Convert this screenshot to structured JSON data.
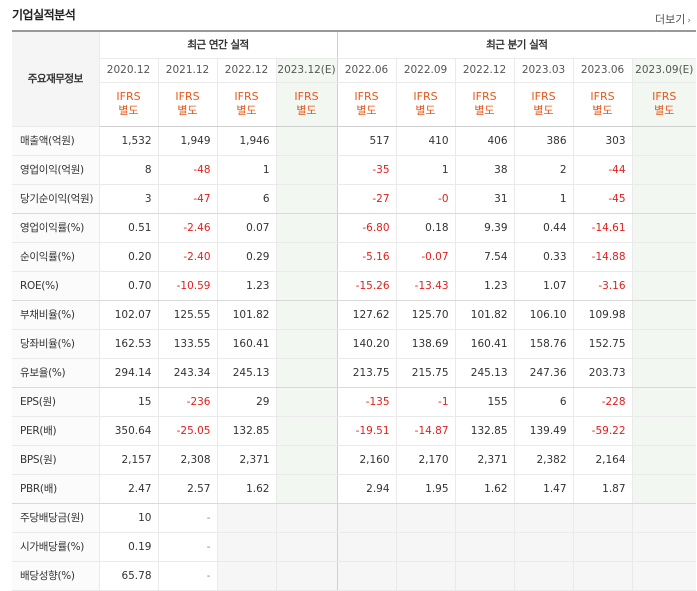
{
  "title": "기업실적분석",
  "more_label": "더보기",
  "corner_label": "주요재무정보",
  "groups": {
    "annual": "최근 연간 실적",
    "quarter": "최근 분기 실적"
  },
  "periods": [
    "2020.12",
    "2021.12",
    "2022.12",
    "2023.12(E)",
    "2022.06",
    "2022.09",
    "2022.12",
    "2023.03",
    "2023.06",
    "2023.09(E)"
  ],
  "ifrs": {
    "line1": "IFRS",
    "line2": "별도"
  },
  "rows": [
    {
      "label": "매출액(억원)",
      "values": [
        "1,532",
        "1,949",
        "1,946",
        "",
        "517",
        "410",
        "406",
        "386",
        "303",
        ""
      ]
    },
    {
      "label": "영업이익(억원)",
      "values": [
        "8",
        "-48",
        "1",
        "",
        "-35",
        "1",
        "38",
        "2",
        "-44",
        ""
      ]
    },
    {
      "label": "당기순이익(억원)",
      "values": [
        "3",
        "-47",
        "6",
        "",
        "-27",
        "-0",
        "31",
        "1",
        "-45",
        ""
      ]
    },
    {
      "label": "영업이익률(%)",
      "values": [
        "0.51",
        "-2.46",
        "0.07",
        "",
        "-6.80",
        "0.18",
        "9.39",
        "0.44",
        "-14.61",
        ""
      ]
    },
    {
      "label": "순이익률(%)",
      "values": [
        "0.20",
        "-2.40",
        "0.29",
        "",
        "-5.16",
        "-0.07",
        "7.54",
        "0.33",
        "-14.88",
        ""
      ]
    },
    {
      "label": "ROE(%)",
      "values": [
        "0.70",
        "-10.59",
        "1.23",
        "",
        "-15.26",
        "-13.43",
        "1.23",
        "1.07",
        "-3.16",
        ""
      ]
    },
    {
      "label": "부채비율(%)",
      "values": [
        "102.07",
        "125.55",
        "101.82",
        "",
        "127.62",
        "125.70",
        "101.82",
        "106.10",
        "109.98",
        ""
      ]
    },
    {
      "label": "당좌비율(%)",
      "values": [
        "162.53",
        "133.55",
        "160.41",
        "",
        "140.20",
        "138.69",
        "160.41",
        "158.76",
        "152.75",
        ""
      ]
    },
    {
      "label": "유보율(%)",
      "values": [
        "294.14",
        "243.34",
        "245.13",
        "",
        "213.75",
        "215.75",
        "245.13",
        "247.36",
        "203.73",
        ""
      ]
    },
    {
      "label": "EPS(원)",
      "values": [
        "15",
        "-236",
        "29",
        "",
        "-135",
        "-1",
        "155",
        "6",
        "-228",
        ""
      ]
    },
    {
      "label": "PER(배)",
      "values": [
        "350.64",
        "-25.05",
        "132.85",
        "",
        "-19.51",
        "-14.87",
        "132.85",
        "139.49",
        "-59.22",
        ""
      ]
    },
    {
      "label": "BPS(원)",
      "values": [
        "2,157",
        "2,308",
        "2,371",
        "",
        "2,160",
        "2,170",
        "2,371",
        "2,382",
        "2,164",
        ""
      ]
    },
    {
      "label": "PBR(배)",
      "values": [
        "2.47",
        "2.57",
        "1.62",
        "",
        "2.94",
        "1.95",
        "1.62",
        "1.47",
        "1.87",
        ""
      ]
    },
    {
      "label": "주당배당금(원)",
      "values": [
        "10",
        "-",
        "",
        "",
        "",
        "",
        "",
        "",
        "",
        ""
      ]
    },
    {
      "label": "시가배당률(%)",
      "values": [
        "0.19",
        "-",
        "",
        "",
        "",
        "",
        "",
        "",
        "",
        ""
      ]
    },
    {
      "label": "배당성향(%)",
      "values": [
        "65.78",
        "-",
        "",
        "",
        "",
        "",
        "",
        "",
        "",
        ""
      ]
    }
  ]
}
